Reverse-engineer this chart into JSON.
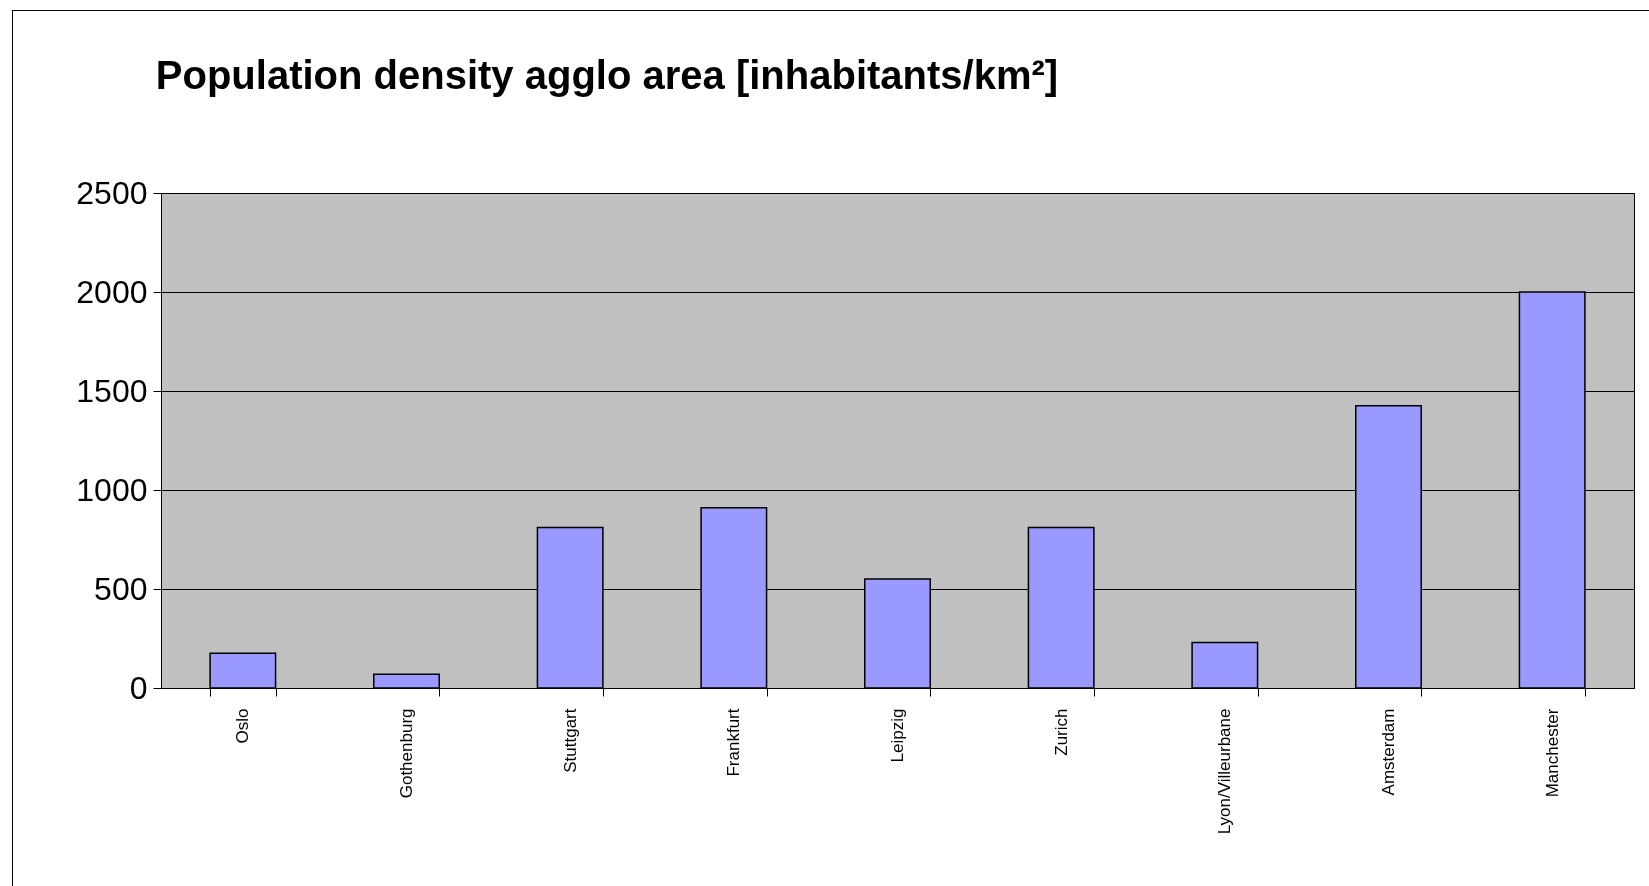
{
  "chart_data": {
    "type": "bar",
    "title": "Population density agglo area [inhabitants/km²]",
    "categories": [
      "Oslo",
      "Gothenburg",
      "Stuttgart",
      "Frankfurt",
      "Leipzig",
      "Zurich",
      "Lyon/Villeurbane",
      "Amsterdam",
      "Manchester"
    ],
    "values": [
      175,
      70,
      810,
      910,
      550,
      810,
      230,
      1425,
      2000
    ],
    "color": "#9999ff",
    "ylim": [
      0,
      2500
    ],
    "yticks": [
      0,
      500,
      1000,
      1500,
      2000,
      2500
    ],
    "grid": "y"
  }
}
